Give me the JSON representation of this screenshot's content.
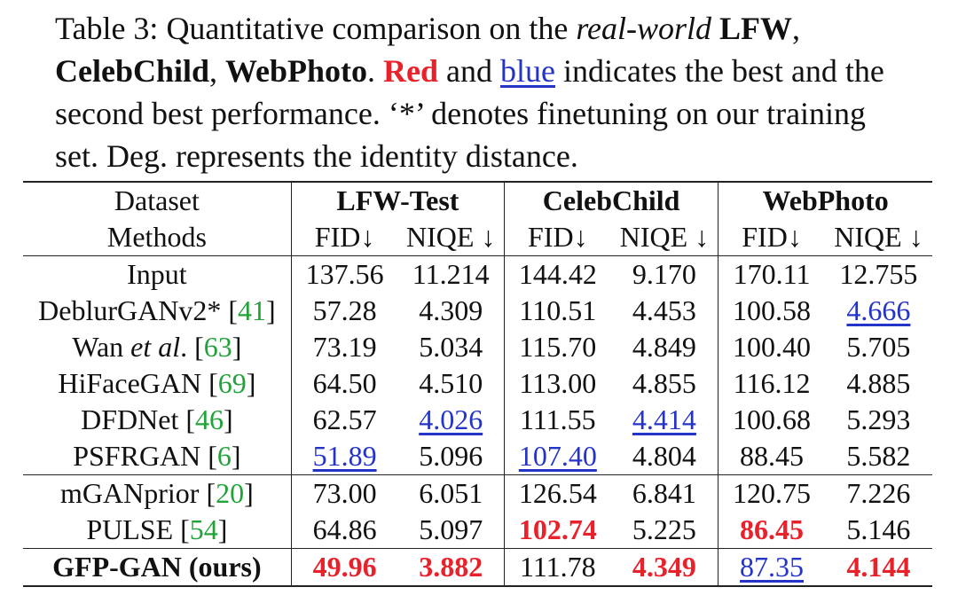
{
  "caption": {
    "p1": "Table 3: Quantitative comparison on the ",
    "italic": "real-world",
    "b1": "LFW",
    "p2": ", ",
    "b2": "CelebChild",
    "p3": ", ",
    "b3": "WebPhoto",
    "p4": ". ",
    "red_word": "Red",
    "p5": " and ",
    "blue_word": "blue",
    "p6": " indicates the best and the second best performance. ‘*’ denotes finetuning on our training set. Deg. represents the identity distance."
  },
  "table": {
    "dataset_label": "Dataset",
    "methods_label": "Methods",
    "datasets": [
      "LFW-Test",
      "CelebChild",
      "WebPhoto"
    ],
    "metrics": [
      "FID↓",
      "NIQE ↓",
      "FID↓",
      "NIQE ↓",
      "FID↓",
      "NIQE ↓"
    ],
    "rows": [
      {
        "name": "Input",
        "values": [
          "137.56",
          "11.214",
          "144.42",
          "9.170",
          "170.11",
          "12.755"
        ]
      },
      {
        "name": "DeblurGANv2* ",
        "ref": "41",
        "values": [
          "57.28",
          "4.309",
          "110.51",
          "4.453",
          "100.58",
          "4.666"
        ]
      },
      {
        "name": "Wan ",
        "italic": "et al",
        "name_suffix": ". ",
        "ref": "63",
        "values": [
          "73.19",
          "5.034",
          "115.70",
          "4.849",
          "100.40",
          "5.705"
        ]
      },
      {
        "name": "HiFaceGAN ",
        "ref": "69",
        "values": [
          "64.50",
          "4.510",
          "113.00",
          "4.855",
          "116.12",
          "4.885"
        ]
      },
      {
        "name": "DFDNet ",
        "ref": "46",
        "values": [
          "62.57",
          "4.026",
          "111.55",
          "4.414",
          "100.68",
          "5.293"
        ]
      },
      {
        "name": "PSFRGAN ",
        "ref": "6",
        "values": [
          "51.89",
          "5.096",
          "107.40",
          "4.804",
          "88.45",
          "5.582"
        ]
      },
      {
        "name": "mGANprior ",
        "ref": "20",
        "values": [
          "73.00",
          "6.051",
          "126.54",
          "6.841",
          "120.75",
          "7.226"
        ]
      },
      {
        "name": "PULSE ",
        "ref": "54",
        "values": [
          "64.86",
          "5.097",
          "102.74",
          "5.225",
          "86.45",
          "5.146"
        ]
      },
      {
        "name": "GFP-GAN (ours)",
        "values": [
          "49.96",
          "3.882",
          "111.78",
          "4.349",
          "87.35",
          "4.144"
        ]
      }
    ]
  },
  "colors": {
    "best": "#e8222b",
    "second": "#2434c8",
    "citation": "#22a33a"
  }
}
